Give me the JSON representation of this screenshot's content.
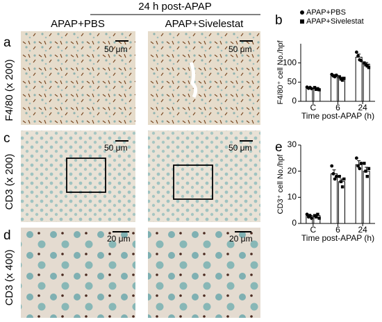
{
  "figure": {
    "header": "24 h post-APAP",
    "columns": [
      "APAP+PBS",
      "APAP+Sivelestat"
    ],
    "rows": [
      {
        "letter": "a",
        "label": "F4/80 (x 200)"
      },
      {
        "letter": "c",
        "label": "CD3 (x 200)"
      },
      {
        "letter": "d",
        "label": "CD3 (x 400)"
      }
    ],
    "scale_bars": [
      "50 μm",
      "50 μm",
      "50 μm",
      "50 μm",
      "20 μm",
      "20 μm"
    ]
  },
  "chart_data": [
    {
      "type": "bar",
      "panel_label": "b",
      "ylabel": "F4/80⁺ cell No./hpf",
      "xlabel": "Time post-APAP (h)",
      "categories": [
        "C",
        "6",
        "24"
      ],
      "ylim": [
        0,
        150
      ],
      "yticks": [
        0,
        50,
        100
      ],
      "legend": "upper left",
      "series": [
        {
          "name": "APAP+PBS",
          "color": "#ffffff",
          "marker": "circle",
          "values": [
            35,
            67,
            115
          ],
          "errors": [
            2,
            3,
            8
          ],
          "points": [
            [
              37,
              34,
              36,
              33
            ],
            [
              70,
              66,
              64,
              68
            ],
            [
              128,
              118,
              108,
              106
            ]
          ]
        },
        {
          "name": "APAP+Sivelestat",
          "color": "#ffffff",
          "marker": "square",
          "values": [
            33,
            60,
            97
          ],
          "errors": [
            2,
            3,
            4
          ],
          "points": [
            [
              36,
              31,
              33,
              30
            ],
            [
              64,
              58,
              55,
              60
            ],
            [
              100,
              95,
              92,
              88
            ]
          ]
        }
      ]
    },
    {
      "type": "bar",
      "panel_label": "e",
      "ylabel": "CD3⁺ cell No./hpf",
      "xlabel": "Time post-APAP (h)",
      "categories": [
        "C",
        "6",
        "24"
      ],
      "ylim": [
        0,
        30
      ],
      "yticks": [
        0,
        10,
        20,
        30
      ],
      "series": [
        {
          "name": "APAP+PBS",
          "color": "#ffffff",
          "marker": "circle",
          "values": [
            3,
            19,
            22.5
          ],
          "errors": [
            0.5,
            1.5,
            1.5
          ],
          "points": [
            [
              3.5,
              2.5,
              3,
              2
            ],
            [
              22,
              19,
              17,
              18
            ],
            [
              25,
              22,
              21,
              23
            ]
          ]
        },
        {
          "name": "APAP+Sivelestat",
          "color": "#ffffff",
          "marker": "square",
          "values": [
            3,
            16,
            20
          ],
          "errors": [
            0.5,
            1,
            1.5
          ],
          "points": [
            [
              3,
              2.5,
              3.5,
              2
            ],
            [
              18,
              16,
              14,
              17
            ],
            [
              23,
              20,
              18,
              21
            ]
          ]
        }
      ]
    }
  ]
}
